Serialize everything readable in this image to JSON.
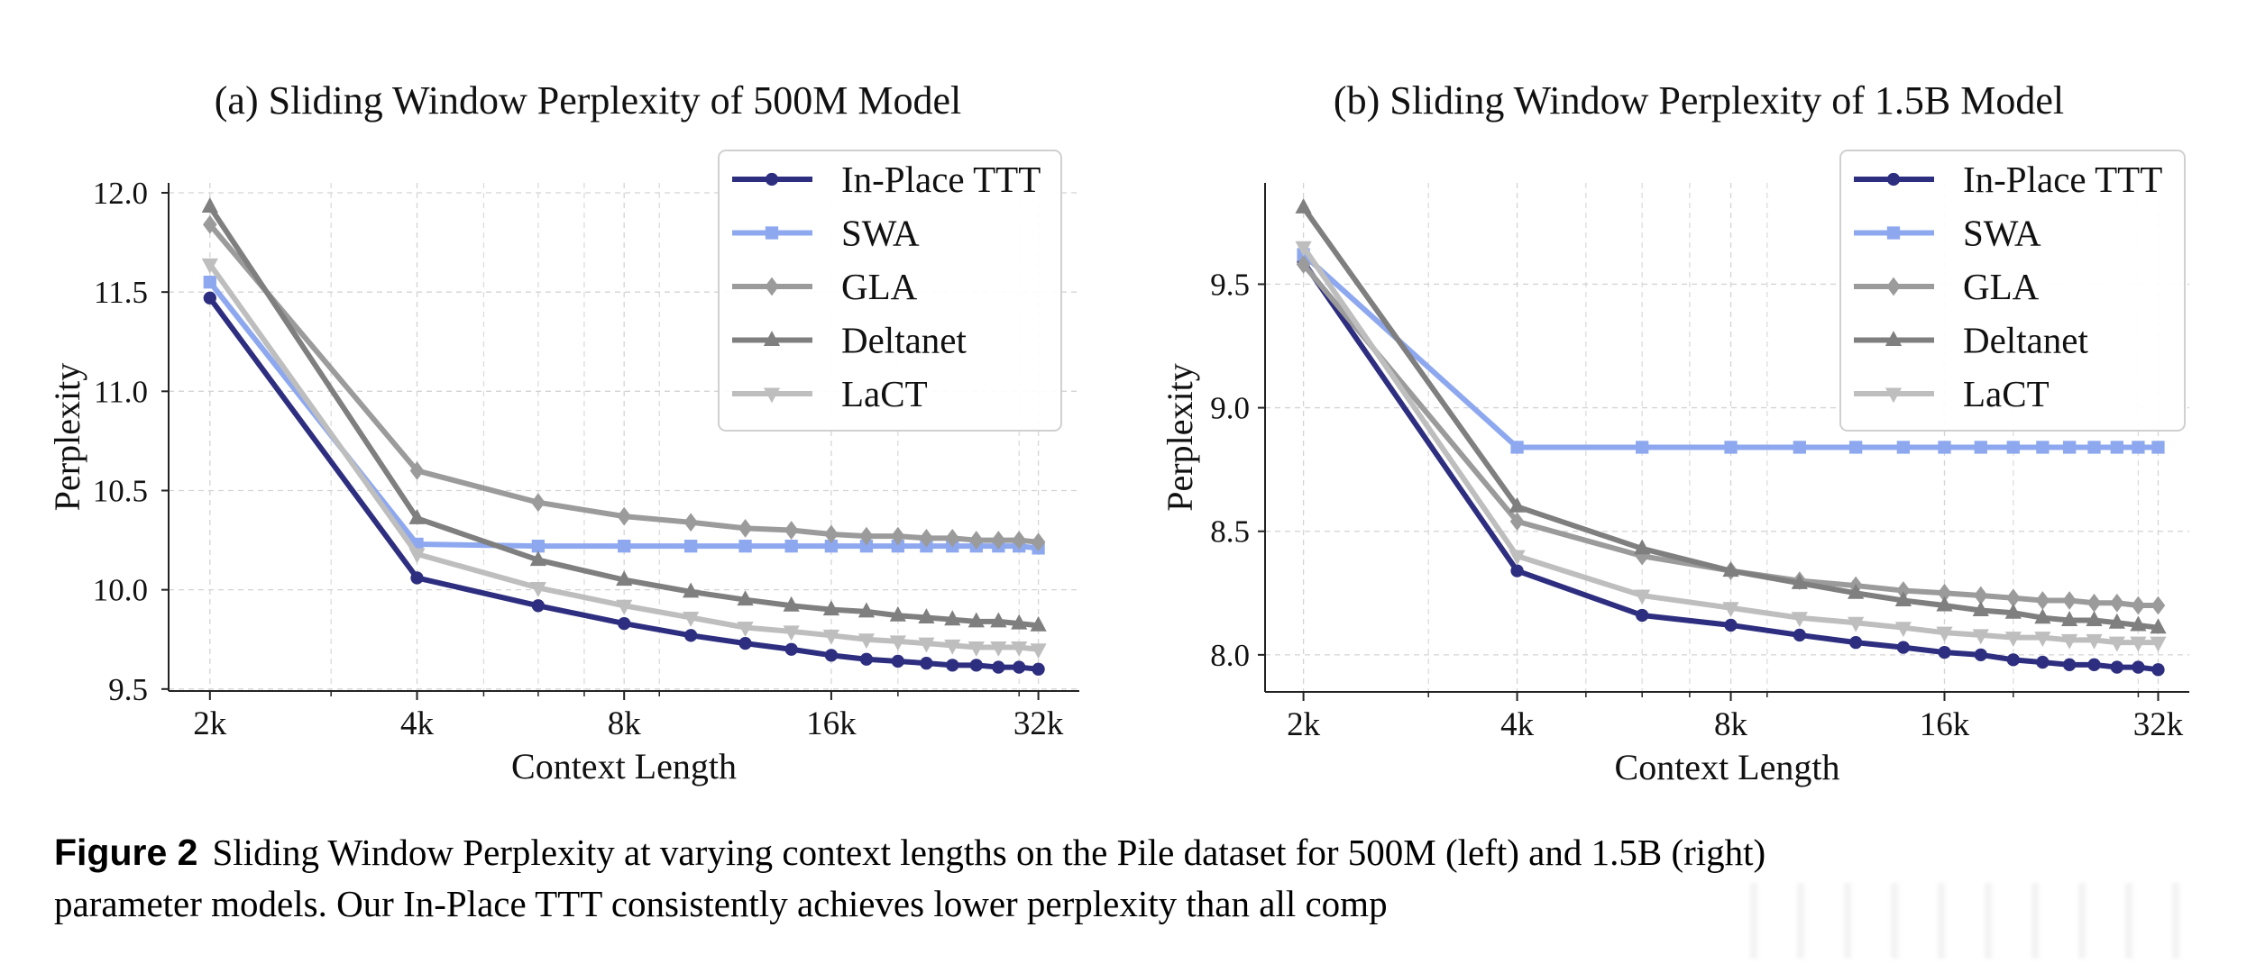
{
  "figure": {
    "caption_label": "Figure 2",
    "caption_line1": "Sliding Window Perplexity at varying context lengths on the Pile dataset for 500M (left) and 1.5B (right)",
    "caption_line2": "parameter models. Our In-Place TTT consistently achieves lower perplexity than all comp"
  },
  "chart_data": [
    {
      "type": "line",
      "title": "(a) Sliding Window Perplexity of 500M Model",
      "xlabel": "Context Length",
      "ylabel": "Perplexity",
      "xscale": "log2",
      "x": [
        2,
        4,
        6,
        8,
        10,
        12,
        14,
        16,
        18,
        20,
        22,
        24,
        26,
        28,
        30,
        32
      ],
      "x_unit": "k",
      "xticks": [
        2,
        4,
        8,
        16,
        32
      ],
      "xtick_labels": [
        "2k",
        "4k",
        "8k",
        "16k",
        "32k"
      ],
      "x_minor_grid": [
        3,
        5,
        6,
        7,
        9,
        20,
        30
      ],
      "ylim": [
        9.49,
        12.05
      ],
      "yticks": [
        9.5,
        10.0,
        10.5,
        11.0,
        11.5,
        12.0
      ],
      "ytick_labels": [
        "9.5",
        "10.0",
        "10.5",
        "11.0",
        "11.5",
        "12.0"
      ],
      "grid": true,
      "legend_position": "top-right",
      "series": [
        {
          "name": "In-Place TTT",
          "color": "#2e2e80",
          "marker": "circle",
          "values": [
            11.47,
            10.06,
            9.92,
            9.83,
            9.77,
            9.73,
            9.7,
            9.67,
            9.65,
            9.64,
            9.63,
            9.62,
            9.62,
            9.61,
            9.61,
            9.6
          ]
        },
        {
          "name": "SWA",
          "color": "#8ea8f0",
          "marker": "square",
          "values": [
            11.55,
            10.23,
            10.22,
            10.22,
            10.22,
            10.22,
            10.22,
            10.22,
            10.22,
            10.22,
            10.22,
            10.22,
            10.22,
            10.22,
            10.22,
            10.21
          ]
        },
        {
          "name": "GLA",
          "color": "#9b9b9b",
          "marker": "diamond",
          "values": [
            11.84,
            10.6,
            10.44,
            10.37,
            10.34,
            10.31,
            10.3,
            10.28,
            10.27,
            10.27,
            10.26,
            10.26,
            10.25,
            10.25,
            10.25,
            10.24
          ]
        },
        {
          "name": "Deltanet",
          "color": "#7f7f7f",
          "marker": "triangle-up",
          "values": [
            11.93,
            10.36,
            10.15,
            10.05,
            9.99,
            9.95,
            9.92,
            9.9,
            9.89,
            9.87,
            9.86,
            9.85,
            9.84,
            9.84,
            9.83,
            9.82
          ]
        },
        {
          "name": "LaCT",
          "color": "#bebebe",
          "marker": "triangle-down",
          "values": [
            11.64,
            10.18,
            10.01,
            9.92,
            9.86,
            9.81,
            9.79,
            9.77,
            9.75,
            9.74,
            9.73,
            9.72,
            9.71,
            9.71,
            9.71,
            9.7
          ]
        }
      ]
    },
    {
      "type": "line",
      "title": "(b) Sliding Window Perplexity of 1.5B Model",
      "xlabel": "Context Length",
      "ylabel": "Perplexity",
      "xscale": "log2",
      "x": [
        2,
        4,
        6,
        8,
        10,
        12,
        14,
        16,
        18,
        20,
        22,
        24,
        26,
        28,
        30,
        32
      ],
      "x_unit": "k",
      "xticks": [
        2,
        4,
        8,
        16,
        32
      ],
      "xtick_labels": [
        "2k",
        "4k",
        "8k",
        "16k",
        "32k"
      ],
      "x_minor_grid": [
        3,
        5,
        6,
        7,
        9,
        20,
        30
      ],
      "ylim": [
        7.85,
        9.91
      ],
      "yticks": [
        8.0,
        8.5,
        9.0,
        9.5
      ],
      "ytick_labels": [
        "8.0",
        "8.5",
        "9.0",
        "9.5"
      ],
      "grid": true,
      "legend_position": "top-right",
      "series": [
        {
          "name": "In-Place TTT",
          "color": "#2e2e80",
          "marker": "circle",
          "values": [
            9.59,
            8.34,
            8.16,
            8.12,
            8.08,
            8.05,
            8.03,
            8.01,
            8.0,
            7.98,
            7.97,
            7.96,
            7.96,
            7.95,
            7.95,
            7.94
          ]
        },
        {
          "name": "SWA",
          "color": "#8ea8f0",
          "marker": "square",
          "values": [
            9.62,
            8.84,
            8.84,
            8.84,
            8.84,
            8.84,
            8.84,
            8.84,
            8.84,
            8.84,
            8.84,
            8.84,
            8.84,
            8.84,
            8.84,
            8.84
          ]
        },
        {
          "name": "GLA",
          "color": "#9b9b9b",
          "marker": "diamond",
          "values": [
            9.58,
            8.54,
            8.4,
            8.34,
            8.3,
            8.28,
            8.26,
            8.25,
            8.24,
            8.23,
            8.22,
            8.22,
            8.21,
            8.21,
            8.2,
            8.2
          ]
        },
        {
          "name": "Deltanet",
          "color": "#7f7f7f",
          "marker": "triangle-up",
          "values": [
            9.81,
            8.6,
            8.43,
            8.34,
            8.29,
            8.25,
            8.22,
            8.2,
            8.18,
            8.17,
            8.15,
            8.14,
            8.14,
            8.13,
            8.12,
            8.11
          ]
        },
        {
          "name": "LaCT",
          "color": "#bebebe",
          "marker": "triangle-down",
          "values": [
            9.65,
            8.4,
            8.24,
            8.19,
            8.15,
            8.13,
            8.11,
            8.09,
            8.08,
            8.07,
            8.07,
            8.06,
            8.06,
            8.05,
            8.05,
            8.05
          ]
        }
      ]
    }
  ]
}
